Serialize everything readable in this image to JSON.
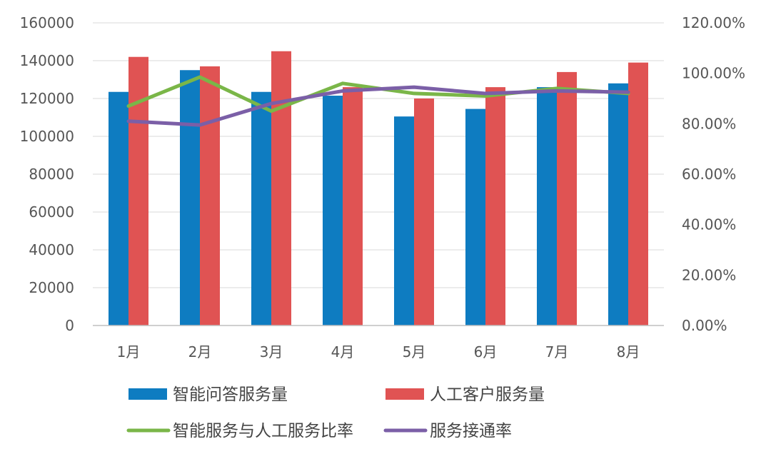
{
  "chart_data": {
    "type": "bar",
    "categories": [
      "1月",
      "2月",
      "3月",
      "4月",
      "5月",
      "6月",
      "7月",
      "8月"
    ],
    "y_left": {
      "ylim": [
        0,
        160000
      ],
      "ticks": [
        "0",
        "20000",
        "40000",
        "60000",
        "80000",
        "100000",
        "120000",
        "140000",
        "160000"
      ]
    },
    "y_right": {
      "ylim": [
        0,
        1.2
      ],
      "ticks": [
        "0.00%",
        "20.00%",
        "40.00%",
        "60.00%",
        "80.00%",
        "100.00%",
        "120.00%"
      ]
    },
    "grid": true,
    "legend_position": "bottom",
    "series": [
      {
        "name": "智能问答服务量",
        "type": "bar",
        "axis": "left",
        "color": "#0e7cc1",
        "values": [
          123500,
          135000,
          123500,
          121500,
          110500,
          114500,
          126000,
          128000
        ]
      },
      {
        "name": "人工客户服务量",
        "type": "bar",
        "axis": "left",
        "color": "#e05353",
        "values": [
          142000,
          137000,
          145000,
          126000,
          120000,
          126000,
          134000,
          139000
        ]
      },
      {
        "name": "智能服务与人工服务比率",
        "type": "line",
        "axis": "right",
        "color": "#7ab648",
        "values": [
          0.87,
          0.985,
          0.85,
          0.96,
          0.92,
          0.91,
          0.94,
          0.92
        ]
      },
      {
        "name": "服务接通率",
        "type": "line",
        "axis": "right",
        "color": "#7b5fa7",
        "values": [
          0.81,
          0.795,
          0.88,
          0.93,
          0.945,
          0.92,
          0.93,
          0.925
        ]
      }
    ]
  }
}
